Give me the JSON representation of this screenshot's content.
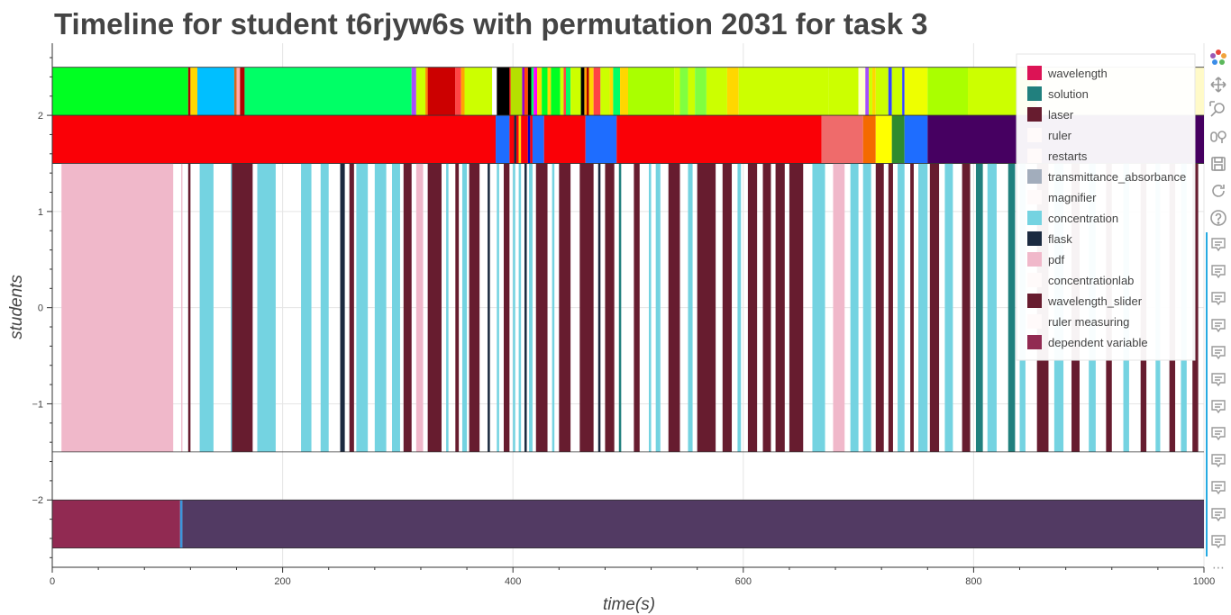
{
  "chart_data": {
    "type": "timeline",
    "title": "Timeline for student t6rjyw6s with permutation 2031 for task 3",
    "xlabel": "time(s)",
    "ylabel": "students",
    "xlim": [
      0,
      1000
    ],
    "ylim": [
      -2.7,
      2.75
    ],
    "x_ticks": [
      0,
      200,
      400,
      600,
      800,
      1000
    ],
    "y_ticks": [
      -2,
      -1,
      0,
      1,
      2
    ],
    "y_tick_labels": [
      "−2",
      "−1",
      "0",
      "1",
      "2"
    ],
    "grid": true,
    "legend_position": "top-right",
    "legend": [
      {
        "label": "wavelength",
        "color": "#dc1355"
      },
      {
        "label": "solution",
        "color": "#21807e"
      },
      {
        "label": "laser",
        "color": "#671c2f"
      },
      {
        "label": "ruler",
        "color": "#fffafa"
      },
      {
        "label": "restarts",
        "color": "#fffafa"
      },
      {
        "label": "transmittance_absorbance",
        "color": "#a2adbc"
      },
      {
        "label": "magnifier",
        "color": "#fffafa"
      },
      {
        "label": "concentration",
        "color": "#74d3e1"
      },
      {
        "label": "flask",
        "color": "#1b2a40"
      },
      {
        "label": "pdf",
        "color": "#f0b8ca"
      },
      {
        "label": "concentrationlab",
        "color": "#fffafa"
      },
      {
        "label": "wavelength_slider",
        "color": "#671c2f"
      },
      {
        "label": "ruler measuring",
        "color": "#fffafa"
      },
      {
        "label": "dependent variable",
        "color": "#912a52"
      }
    ],
    "rows": [
      {
        "y0": 2.0,
        "y1": 2.5,
        "segments": [
          [
            0,
            118,
            "#00ff22"
          ],
          [
            118,
            120,
            "#b30000"
          ],
          [
            120,
            126,
            "#ffd700"
          ],
          [
            126,
            158,
            "#00bfff"
          ],
          [
            158,
            160,
            "#d2691e"
          ],
          [
            160,
            163,
            "#ffaaaa"
          ],
          [
            163,
            167,
            "#b30000"
          ],
          [
            167,
            312,
            "#00ff66"
          ],
          [
            312,
            316,
            "#a64dff"
          ],
          [
            316,
            324,
            "#ccff00"
          ],
          [
            324,
            326,
            "#ff8800"
          ],
          [
            326,
            350,
            "#cc0000"
          ],
          [
            350,
            355,
            "#ff4444"
          ],
          [
            355,
            358,
            "#ffa500"
          ],
          [
            358,
            382,
            "#ccff00"
          ],
          [
            382,
            386,
            "#ffffff"
          ],
          [
            386,
            397,
            "#000000"
          ],
          [
            397,
            398,
            "#ff0000"
          ],
          [
            398,
            408,
            "#b5e000"
          ],
          [
            408,
            410,
            "#9400d3"
          ],
          [
            410,
            413,
            "#ff4500"
          ],
          [
            413,
            416,
            "#000000"
          ],
          [
            416,
            418,
            "#00ff66"
          ],
          [
            418,
            421,
            "#ff00ff"
          ],
          [
            421,
            425,
            "#ffd700"
          ],
          [
            425,
            430,
            "#00ff22"
          ],
          [
            430,
            433,
            "#ffd700"
          ],
          [
            433,
            441,
            "#00ff22"
          ],
          [
            441,
            444,
            "#ccff00"
          ],
          [
            444,
            446,
            "#ff4444"
          ],
          [
            446,
            450,
            "#00ff66"
          ],
          [
            450,
            459,
            "#ccff00"
          ],
          [
            459,
            462,
            "#000000"
          ],
          [
            462,
            464,
            "#ffa500"
          ],
          [
            464,
            466,
            "#b30000"
          ],
          [
            466,
            470,
            "#ffd700"
          ],
          [
            470,
            476,
            "#ff4444"
          ],
          [
            476,
            484,
            "#ccff00"
          ],
          [
            484,
            487,
            "#ffd700"
          ],
          [
            487,
            493,
            "#00ff66"
          ],
          [
            493,
            500,
            "#ffd700"
          ],
          [
            500,
            540,
            "#aaff00"
          ],
          [
            540,
            545,
            "#ccff00"
          ],
          [
            545,
            552,
            "#80ff40"
          ],
          [
            552,
            558,
            "#ccff00"
          ],
          [
            558,
            568,
            "#80ff40"
          ],
          [
            568,
            586,
            "#ccff00"
          ],
          [
            586,
            596,
            "#ffd700"
          ],
          [
            596,
            674,
            "#ccff00"
          ],
          [
            674,
            700,
            "#ccff00"
          ],
          [
            700,
            706,
            "#ffffcc"
          ],
          [
            706,
            709,
            "#a64dff"
          ],
          [
            709,
            712,
            "#ccff00"
          ],
          [
            712,
            715,
            "#ffd700"
          ],
          [
            715,
            726,
            "#ccff00"
          ],
          [
            726,
            729,
            "#3344ff"
          ],
          [
            729,
            738,
            "#ccff00"
          ],
          [
            738,
            740,
            "#3344ff"
          ],
          [
            740,
            760,
            "#eeff00"
          ],
          [
            760,
            795,
            "#aaff00"
          ],
          [
            795,
            855,
            "#ccff00"
          ],
          [
            855,
            1000,
            "#fffac8"
          ]
        ]
      },
      {
        "y0": 1.5,
        "y1": 2.0,
        "segments": [
          [
            0,
            385,
            "#fa0006"
          ],
          [
            385,
            397,
            "#1e6dff"
          ],
          [
            397,
            401,
            "#fa0006"
          ],
          [
            401,
            403,
            "#1b2a40"
          ],
          [
            403,
            405,
            "#fa0006"
          ],
          [
            405,
            407,
            "#ffd700"
          ],
          [
            407,
            413,
            "#fa0006"
          ],
          [
            413,
            415,
            "#0000cc"
          ],
          [
            415,
            417,
            "#fa0006"
          ],
          [
            417,
            427,
            "#1e6dff"
          ],
          [
            427,
            463,
            "#fa0006"
          ],
          [
            463,
            490,
            "#1e6dff"
          ],
          [
            490,
            668,
            "#fa0006"
          ],
          [
            668,
            704,
            "#ef6b6b"
          ],
          [
            704,
            715,
            "#f46a00"
          ],
          [
            715,
            729,
            "#ffff00"
          ],
          [
            729,
            740,
            "#2e8b2e"
          ],
          [
            740,
            760,
            "#1e6dff"
          ],
          [
            760,
            1000,
            "#460061"
          ]
        ]
      },
      {
        "y0": -1.5,
        "y1": 1.5,
        "segments": [
          [
            8,
            105,
            "#f0b8ca"
          ],
          [
            112,
            113,
            "#f0b8ca"
          ],
          [
            118,
            120,
            "#671c2f"
          ],
          [
            128,
            140,
            "#74d3e1"
          ],
          [
            155,
            157,
            "#74d3e1"
          ],
          [
            156,
            174,
            "#671c2f"
          ],
          [
            178,
            194,
            "#74d3e1"
          ],
          [
            216,
            225,
            "#74d3e1"
          ],
          [
            233,
            240,
            "#74d3e1"
          ],
          [
            250,
            254,
            "#1b2a40"
          ],
          [
            258,
            262,
            "#671c2f"
          ],
          [
            264,
            274,
            "#74d3e1"
          ],
          [
            280,
            290,
            "#74d3e1"
          ],
          [
            295,
            302,
            "#74d3e1"
          ],
          [
            305,
            312,
            "#671c2f"
          ],
          [
            316,
            322,
            "#f0b8ca"
          ],
          [
            326,
            338,
            "#671c2f"
          ],
          [
            342,
            344,
            "#74d3e1"
          ],
          [
            350,
            353,
            "#671c2f"
          ],
          [
            356,
            360,
            "#74d3e1"
          ],
          [
            362,
            371,
            "#671c2f"
          ],
          [
            378,
            380,
            "#1b2a40"
          ],
          [
            386,
            388,
            "#74d3e1"
          ],
          [
            392,
            397,
            "#671c2f"
          ],
          [
            400,
            402,
            "#74d3e1"
          ],
          [
            405,
            407,
            "#74d3e1"
          ],
          [
            410,
            412,
            "#1b2a40"
          ],
          [
            414,
            417,
            "#74d3e1"
          ],
          [
            420,
            430,
            "#671c2f"
          ],
          [
            434,
            436,
            "#74d3e1"
          ],
          [
            440,
            450,
            "#671c2f"
          ],
          [
            458,
            470,
            "#671c2f"
          ],
          [
            474,
            476,
            "#1b2a40"
          ],
          [
            480,
            488,
            "#671c2f"
          ],
          [
            492,
            494,
            "#21807e"
          ],
          [
            505,
            510,
            "#671c2f"
          ],
          [
            518,
            520,
            "#74d3e1"
          ],
          [
            524,
            528,
            "#74d3e1"
          ],
          [
            535,
            545,
            "#671c2f"
          ],
          [
            552,
            556,
            "#74d3e1"
          ],
          [
            560,
            576,
            "#671c2f"
          ],
          [
            582,
            590,
            "#671c2f"
          ],
          [
            595,
            598,
            "#74d3e1"
          ],
          [
            604,
            612,
            "#671c2f"
          ],
          [
            617,
            624,
            "#671c2f"
          ],
          [
            628,
            636,
            "#671c2f"
          ],
          [
            640,
            652,
            "#671c2f"
          ],
          [
            660,
            671,
            "#74d3e1"
          ],
          [
            678,
            688,
            "#f0b8ca"
          ],
          [
            693,
            700,
            "#74d3e1"
          ],
          [
            704,
            711,
            "#74d3e1"
          ],
          [
            715,
            722,
            "#671c2f"
          ],
          [
            726,
            730,
            "#671c2f"
          ],
          [
            734,
            740,
            "#74d3e1"
          ],
          [
            745,
            748,
            "#671c2f"
          ],
          [
            752,
            760,
            "#74d3e1"
          ],
          [
            762,
            770,
            "#671c2f"
          ],
          [
            775,
            782,
            "#74d3e1"
          ],
          [
            790,
            797,
            "#671c2f"
          ],
          [
            802,
            808,
            "#21807e"
          ],
          [
            812,
            820,
            "#74d3e1"
          ],
          [
            830,
            836,
            "#21807e"
          ],
          [
            840,
            845,
            "#74d3e1"
          ],
          [
            855,
            865,
            "#671c2f"
          ],
          [
            870,
            878,
            "#74d3e1"
          ],
          [
            885,
            892,
            "#671c2f"
          ],
          [
            900,
            906,
            "#74d3e1"
          ],
          [
            915,
            920,
            "#671c2f"
          ],
          [
            930,
            935,
            "#74d3e1"
          ],
          [
            945,
            950,
            "#671c2f"
          ],
          [
            958,
            962,
            "#74d3e1"
          ],
          [
            970,
            975,
            "#671c2f"
          ],
          [
            980,
            985,
            "#74d3e1"
          ],
          [
            990,
            995,
            "#671c2f"
          ]
        ]
      },
      {
        "y0": -2.5,
        "y1": -2.0,
        "segments": [
          [
            0,
            111,
            "#912a52"
          ],
          [
            111,
            113,
            "#3a96dc"
          ],
          [
            113,
            1000,
            "#523a63"
          ]
        ]
      }
    ]
  },
  "toolbar": {
    "items": [
      {
        "name": "bokeh-logo-icon",
        "interactable": false
      },
      {
        "name": "pan-icon",
        "interactable": true
      },
      {
        "name": "box-zoom-icon",
        "interactable": true
      },
      {
        "name": "wheel-zoom-icon",
        "interactable": true
      },
      {
        "name": "save-icon",
        "interactable": true
      },
      {
        "name": "reset-icon",
        "interactable": true
      },
      {
        "name": "help-icon",
        "interactable": true
      },
      {
        "name": "hover-icon",
        "interactable": true
      }
    ],
    "more_label": "⋯"
  }
}
